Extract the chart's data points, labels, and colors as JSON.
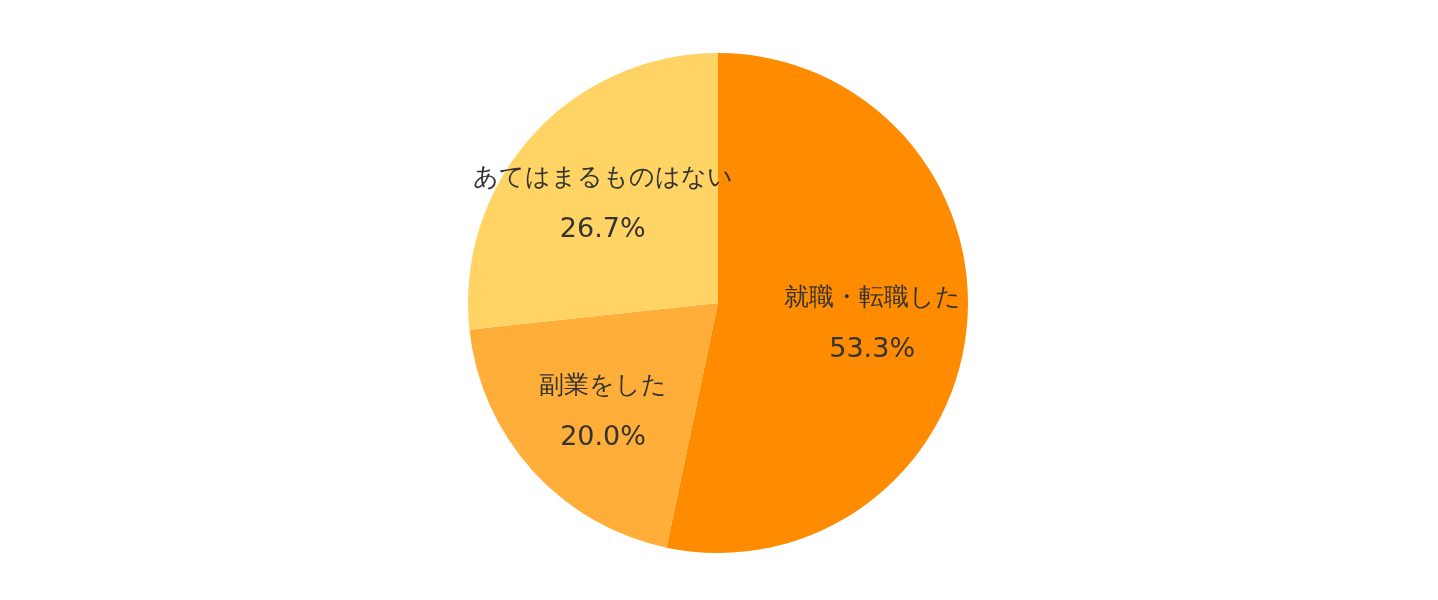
{
  "chart_data": {
    "type": "pie",
    "categories": [
      "就職・転職した",
      "副業をした",
      "あてはまるものはない"
    ],
    "values": [
      53.3,
      20.0,
      26.7
    ],
    "value_labels": [
      "53.3%",
      "20.0%",
      "26.7%"
    ],
    "colors": [
      "#ff8c00",
      "#ffae3a",
      "#ffd465"
    ]
  }
}
